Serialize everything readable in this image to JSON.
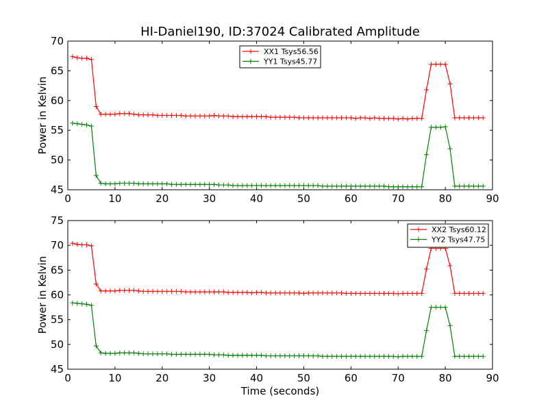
{
  "chart_data": [
    {
      "type": "line",
      "title": "HI-Daniel190, ID:37024 Calibrated Amplitude",
      "xlabel": "",
      "ylabel": "Power in Kelvin",
      "xlim": [
        0,
        90
      ],
      "ylim": [
        45,
        70
      ],
      "xticks": [
        0,
        10,
        20,
        30,
        40,
        50,
        60,
        70,
        80,
        90
      ],
      "yticks": [
        45,
        50,
        55,
        60,
        65,
        70
      ],
      "grid": false,
      "legend": "top-center",
      "x": [
        1,
        2,
        3,
        4,
        5,
        6,
        7,
        8,
        9,
        10,
        11,
        12,
        13,
        14,
        15,
        16,
        17,
        18,
        19,
        20,
        21,
        22,
        23,
        24,
        25,
        26,
        27,
        28,
        29,
        30,
        31,
        32,
        33,
        34,
        35,
        36,
        37,
        38,
        39,
        40,
        41,
        42,
        43,
        44,
        45,
        46,
        47,
        48,
        49,
        50,
        51,
        52,
        53,
        54,
        55,
        56,
        57,
        58,
        59,
        60,
        61,
        62,
        63,
        64,
        65,
        66,
        67,
        68,
        69,
        70,
        71,
        72,
        73,
        74,
        75,
        76,
        77,
        78,
        79,
        80,
        81,
        82,
        83,
        84,
        85,
        86,
        87,
        88
      ],
      "series": [
        {
          "name": "XX1 Tsys56.56",
          "color": "#ff0000",
          "values": [
            67.4,
            67.2,
            67.1,
            67.1,
            66.9,
            59.0,
            57.7,
            57.7,
            57.7,
            57.7,
            57.8,
            57.8,
            57.8,
            57.7,
            57.6,
            57.6,
            57.6,
            57.6,
            57.5,
            57.5,
            57.5,
            57.5,
            57.5,
            57.5,
            57.4,
            57.4,
            57.4,
            57.4,
            57.4,
            57.4,
            57.5,
            57.4,
            57.4,
            57.4,
            57.3,
            57.3,
            57.3,
            57.3,
            57.3,
            57.3,
            57.3,
            57.3,
            57.2,
            57.2,
            57.2,
            57.2,
            57.2,
            57.2,
            57.1,
            57.1,
            57.1,
            57.1,
            57.1,
            57.1,
            57.1,
            57.1,
            57.1,
            57.1,
            57.1,
            57.1,
            57.0,
            57.1,
            57.1,
            57.0,
            57.1,
            57.0,
            57.0,
            57.0,
            57.0,
            56.9,
            57.0,
            56.9,
            57.0,
            57.0,
            57.0,
            61.8,
            66.1,
            66.1,
            66.1,
            66.1,
            62.8,
            57.1,
            57.1,
            57.1,
            57.1,
            57.1,
            57.1,
            57.1
          ]
        },
        {
          "name": "YY1 Tsys45.77",
          "color": "#008000",
          "values": [
            56.2,
            56.1,
            56.0,
            55.9,
            55.7,
            47.4,
            46.1,
            46.0,
            46.0,
            46.0,
            46.1,
            46.1,
            46.1,
            46.1,
            46.0,
            46.0,
            46.0,
            46.0,
            46.0,
            46.0,
            46.0,
            45.9,
            45.9,
            45.9,
            45.9,
            45.9,
            45.9,
            45.9,
            45.9,
            45.9,
            45.9,
            45.8,
            45.8,
            45.8,
            45.7,
            45.7,
            45.7,
            45.7,
            45.7,
            45.7,
            45.7,
            45.7,
            45.7,
            45.7,
            45.7,
            45.7,
            45.7,
            45.7,
            45.7,
            45.7,
            45.7,
            45.7,
            45.7,
            45.6,
            45.6,
            45.6,
            45.6,
            45.6,
            45.6,
            45.6,
            45.6,
            45.6,
            45.6,
            45.6,
            45.6,
            45.6,
            45.6,
            45.5,
            45.5,
            45.5,
            45.5,
            45.5,
            45.5,
            45.5,
            45.5,
            50.9,
            55.5,
            55.5,
            55.5,
            55.6,
            51.9,
            45.6,
            45.6,
            45.6,
            45.6,
            45.6,
            45.6,
            45.6
          ]
        }
      ]
    },
    {
      "type": "line",
      "title": "",
      "xlabel": "Time (seconds)",
      "ylabel": "Power in Kelvin",
      "xlim": [
        0,
        90
      ],
      "ylim": [
        45,
        75
      ],
      "xticks": [
        0,
        10,
        20,
        30,
        40,
        50,
        60,
        70,
        80,
        90
      ],
      "yticks": [
        45,
        50,
        55,
        60,
        65,
        70,
        75
      ],
      "grid": false,
      "legend": "top-right",
      "x": [
        1,
        2,
        3,
        4,
        5,
        6,
        7,
        8,
        9,
        10,
        11,
        12,
        13,
        14,
        15,
        16,
        17,
        18,
        19,
        20,
        21,
        22,
        23,
        24,
        25,
        26,
        27,
        28,
        29,
        30,
        31,
        32,
        33,
        34,
        35,
        36,
        37,
        38,
        39,
        40,
        41,
        42,
        43,
        44,
        45,
        46,
        47,
        48,
        49,
        50,
        51,
        52,
        53,
        54,
        55,
        56,
        57,
        58,
        59,
        60,
        61,
        62,
        63,
        64,
        65,
        66,
        67,
        68,
        69,
        70,
        71,
        72,
        73,
        74,
        75,
        76,
        77,
        78,
        79,
        80,
        81,
        82,
        83,
        84,
        85,
        86,
        87,
        88
      ],
      "series": [
        {
          "name": "XX2 Tsys60.12",
          "color": "#ff0000",
          "values": [
            70.4,
            70.2,
            70.1,
            70.1,
            69.9,
            62.2,
            60.8,
            60.8,
            60.8,
            60.8,
            60.9,
            60.9,
            60.9,
            60.9,
            60.8,
            60.7,
            60.7,
            60.7,
            60.7,
            60.7,
            60.7,
            60.7,
            60.7,
            60.7,
            60.6,
            60.6,
            60.6,
            60.6,
            60.6,
            60.6,
            60.6,
            60.6,
            60.6,
            60.5,
            60.5,
            60.5,
            60.5,
            60.5,
            60.4,
            60.5,
            60.5,
            60.4,
            60.4,
            60.4,
            60.4,
            60.4,
            60.4,
            60.4,
            60.4,
            60.3,
            60.4,
            60.4,
            60.4,
            60.4,
            60.4,
            60.4,
            60.4,
            60.4,
            60.3,
            60.3,
            60.3,
            60.3,
            60.3,
            60.3,
            60.3,
            60.3,
            60.3,
            60.3,
            60.3,
            60.2,
            60.3,
            60.3,
            60.3,
            60.3,
            60.3,
            65.2,
            69.4,
            69.4,
            69.4,
            69.4,
            65.9,
            60.3,
            60.3,
            60.3,
            60.3,
            60.3,
            60.3,
            60.3
          ]
        },
        {
          "name": "YY2 Tsys47.75",
          "color": "#008000",
          "values": [
            58.4,
            58.3,
            58.2,
            58.1,
            57.9,
            49.7,
            48.3,
            48.2,
            48.2,
            48.2,
            48.3,
            48.3,
            48.3,
            48.3,
            48.2,
            48.1,
            48.1,
            48.1,
            48.1,
            48.1,
            48.1,
            48.0,
            48.0,
            48.0,
            48.0,
            48.0,
            48.0,
            48.0,
            48.0,
            48.0,
            47.9,
            47.9,
            47.9,
            47.8,
            47.8,
            47.8,
            47.8,
            47.8,
            47.8,
            47.8,
            47.8,
            47.7,
            47.7,
            47.7,
            47.7,
            47.7,
            47.7,
            47.7,
            47.7,
            47.7,
            47.7,
            47.7,
            47.7,
            47.6,
            47.6,
            47.6,
            47.6,
            47.6,
            47.6,
            47.6,
            47.6,
            47.6,
            47.6,
            47.6,
            47.6,
            47.6,
            47.6,
            47.6,
            47.6,
            47.5,
            47.6,
            47.6,
            47.6,
            47.6,
            47.6,
            52.8,
            57.5,
            57.5,
            57.5,
            57.5,
            53.8,
            47.6,
            47.6,
            47.6,
            47.6,
            47.6,
            47.6,
            47.6
          ]
        }
      ]
    }
  ]
}
